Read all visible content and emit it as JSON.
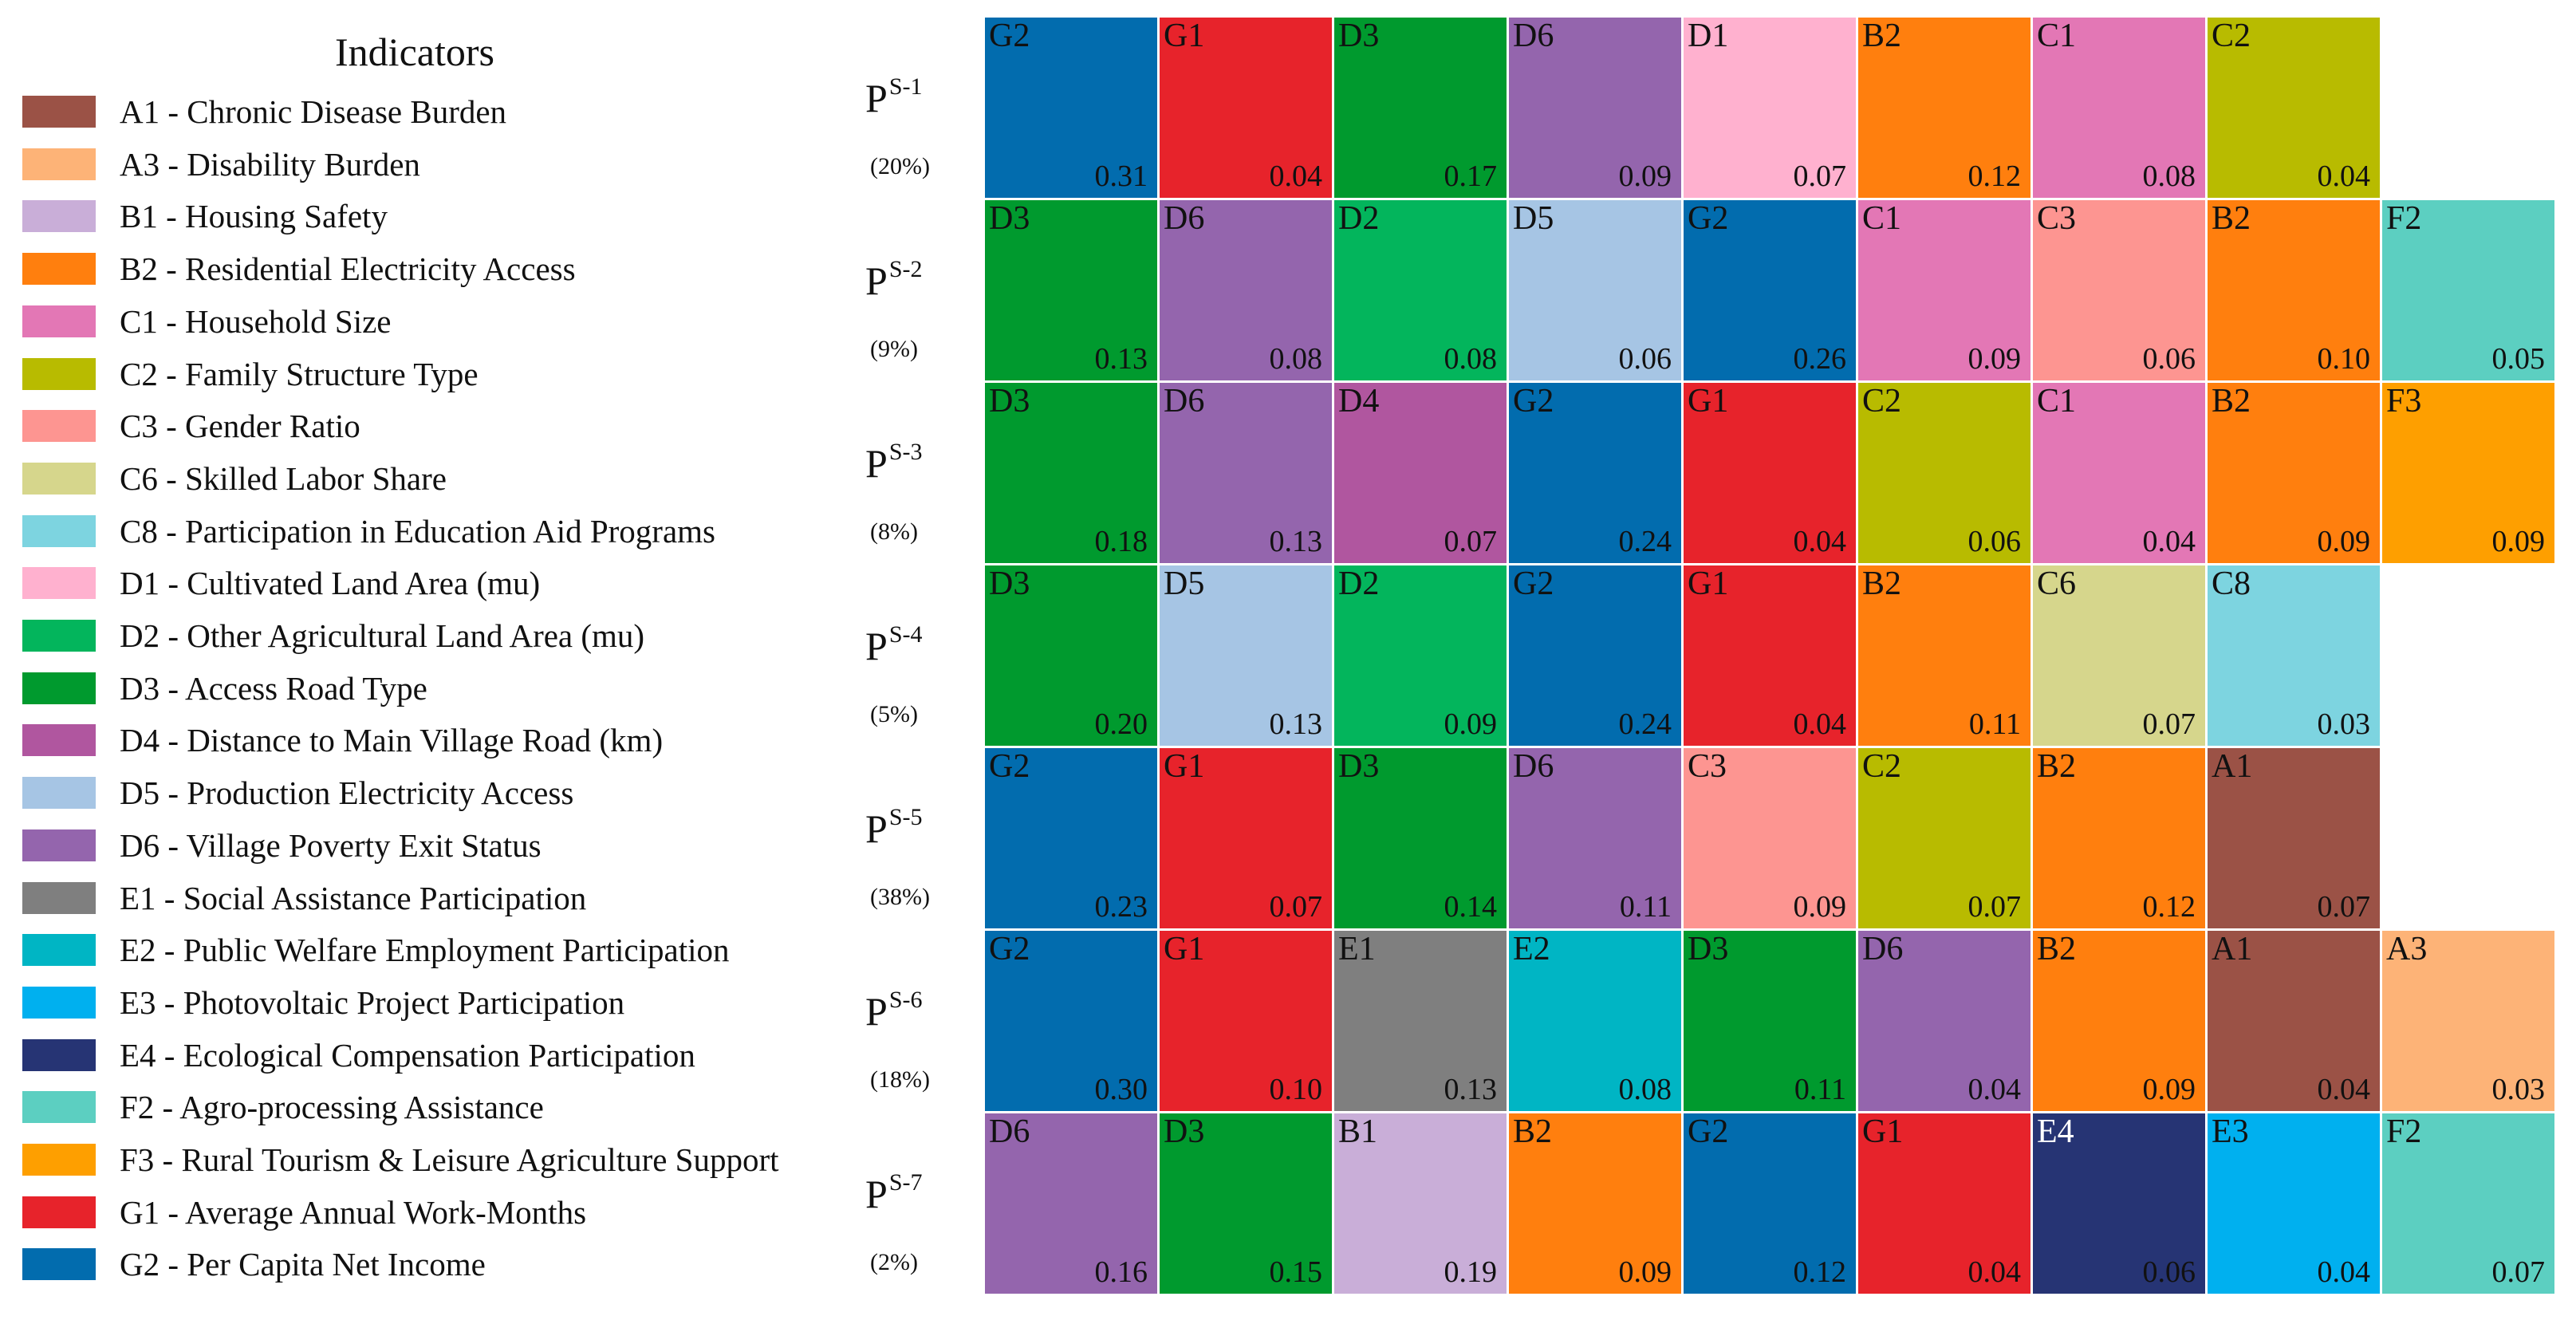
{
  "chart_data": {
    "type": "heatmap",
    "legend_title": "Indicators",
    "indicators": [
      {
        "code": "A1",
        "label": "A1 - Chronic Disease Burden",
        "color": "#9b5246"
      },
      {
        "code": "A3",
        "label": "A3 - Disability Burden",
        "color": "#fdb377"
      },
      {
        "code": "B1",
        "label": "B1 - Housing Safety",
        "color": "#c9aed8"
      },
      {
        "code": "B2",
        "label": "B2 - Residential Electricity Access",
        "color": "#ff7f0e"
      },
      {
        "code": "C1",
        "label": "C1 - Household Size",
        "color": "#e377b5"
      },
      {
        "code": "C2",
        "label": "C2 - Family Structure Type",
        "color": "#b8bb00"
      },
      {
        "code": "C3",
        "label": "C3 - Gender Ratio",
        "color": "#fd9591"
      },
      {
        "code": "C6",
        "label": "C6 - Skilled Labor Share",
        "color": "#d6d68c"
      },
      {
        "code": "C8",
        "label": "C8 - Participation in Education Aid Programs",
        "color": "#7dd4e0"
      },
      {
        "code": "D1",
        "label": "D1 - Cultivated Land Area (mu)",
        "color": "#ffb1cf"
      },
      {
        "code": "D2",
        "label": "D2 - Other Agricultural Land Area (mu)",
        "color": "#03b55c"
      },
      {
        "code": "D3",
        "label": "D3 - Access Road Type",
        "color": "#009a2e"
      },
      {
        "code": "D4",
        "label": "D4 - Distance to Main Village Road (km)",
        "color": "#b0569f"
      },
      {
        "code": "D5",
        "label": "D5 - Production Electricity Access",
        "color": "#a6c5e4"
      },
      {
        "code": "D6",
        "label": "D6 - Village Poverty Exit Status",
        "color": "#9465ad"
      },
      {
        "code": "E1",
        "label": "E1 - Social Assistance Participation",
        "color": "#7f7f7f"
      },
      {
        "code": "E2",
        "label": "E2 - Public Welfare Employment Participation",
        "color": "#00b5c4"
      },
      {
        "code": "E3",
        "label": "E3 - Photovoltaic Project Participation",
        "color": "#00b0ef"
      },
      {
        "code": "E4",
        "label": "E4 - Ecological Compensation Participation",
        "color": "#263474"
      },
      {
        "code": "F2",
        "label": "F2 - Agro-processing Assistance",
        "color": "#5ccfc1"
      },
      {
        "code": "F3",
        "label": "F3 - Rural Tourism & Leisure Agriculture Support",
        "color": "#fe9f00"
      },
      {
        "code": "G1",
        "label": "G1 - Average Annual Work-Months",
        "color": "#e7232b"
      },
      {
        "code": "G2",
        "label": "G2 - Per Capita Net Income",
        "color": "#026cae"
      }
    ],
    "rows": [
      {
        "label": "P",
        "sup": "S-1",
        "share": "(20%)",
        "cells": [
          {
            "code": "G2",
            "value": "0.31"
          },
          {
            "code": "G1",
            "value": "0.04"
          },
          {
            "code": "D3",
            "value": "0.17"
          },
          {
            "code": "D6",
            "value": "0.09"
          },
          {
            "code": "D1",
            "value": "0.07"
          },
          {
            "code": "B2",
            "value": "0.12"
          },
          {
            "code": "C1",
            "value": "0.08"
          },
          {
            "code": "C2",
            "value": "0.04"
          }
        ]
      },
      {
        "label": "P",
        "sup": "S-2",
        "share": "(9%)",
        "cells": [
          {
            "code": "D3",
            "value": "0.13"
          },
          {
            "code": "D6",
            "value": "0.08"
          },
          {
            "code": "D2",
            "value": "0.08"
          },
          {
            "code": "D5",
            "value": "0.06"
          },
          {
            "code": "G2",
            "value": "0.26"
          },
          {
            "code": "C1",
            "value": "0.09"
          },
          {
            "code": "C3",
            "value": "0.06"
          },
          {
            "code": "B2",
            "value": "0.10"
          },
          {
            "code": "F2",
            "value": "0.05"
          }
        ]
      },
      {
        "label": "P",
        "sup": "S-3",
        "share": "(8%)",
        "cells": [
          {
            "code": "D3",
            "value": "0.18"
          },
          {
            "code": "D6",
            "value": "0.13"
          },
          {
            "code": "D4",
            "value": "0.07"
          },
          {
            "code": "G2",
            "value": "0.24"
          },
          {
            "code": "G1",
            "value": "0.04"
          },
          {
            "code": "C2",
            "value": "0.06"
          },
          {
            "code": "C1",
            "value": "0.04"
          },
          {
            "code": "B2",
            "value": "0.09"
          },
          {
            "code": "F3",
            "value": "0.09"
          }
        ]
      },
      {
        "label": "P",
        "sup": "S-4",
        "share": "(5%)",
        "cells": [
          {
            "code": "D3",
            "value": "0.20"
          },
          {
            "code": "D5",
            "value": "0.13"
          },
          {
            "code": "D2",
            "value": "0.09"
          },
          {
            "code": "G2",
            "value": "0.24"
          },
          {
            "code": "G1",
            "value": "0.04"
          },
          {
            "code": "B2",
            "value": "0.11"
          },
          {
            "code": "C6",
            "value": "0.07"
          },
          {
            "code": "C8",
            "value": "0.03"
          }
        ]
      },
      {
        "label": "P",
        "sup": "S-5",
        "share": "(38%)",
        "cells": [
          {
            "code": "G2",
            "value": "0.23"
          },
          {
            "code": "G1",
            "value": "0.07"
          },
          {
            "code": "D3",
            "value": "0.14"
          },
          {
            "code": "D6",
            "value": "0.11"
          },
          {
            "code": "C3",
            "value": "0.09"
          },
          {
            "code": "C2",
            "value": "0.07"
          },
          {
            "code": "B2",
            "value": "0.12"
          },
          {
            "code": "A1",
            "value": "0.07"
          }
        ]
      },
      {
        "label": "P",
        "sup": "S-6",
        "share": "(18%)",
        "cells": [
          {
            "code": "G2",
            "value": "0.30"
          },
          {
            "code": "G1",
            "value": "0.10"
          },
          {
            "code": "E1",
            "value": "0.13"
          },
          {
            "code": "E2",
            "value": "0.08"
          },
          {
            "code": "D3",
            "value": "0.11"
          },
          {
            "code": "D6",
            "value": "0.04"
          },
          {
            "code": "B2",
            "value": "0.09"
          },
          {
            "code": "A1",
            "value": "0.04"
          },
          {
            "code": "A3",
            "value": "0.03"
          }
        ]
      },
      {
        "label": "P",
        "sup": "S-7",
        "share": "(2%)",
        "cells": [
          {
            "code": "D6",
            "value": "0.16"
          },
          {
            "code": "D3",
            "value": "0.15"
          },
          {
            "code": "B1",
            "value": "0.19"
          },
          {
            "code": "B2",
            "value": "0.09"
          },
          {
            "code": "G2",
            "value": "0.12"
          },
          {
            "code": "G1",
            "value": "0.04"
          },
          {
            "code": "E4",
            "value": "0.06"
          },
          {
            "code": "E3",
            "value": "0.04"
          },
          {
            "code": "F2",
            "value": "0.07"
          }
        ]
      }
    ]
  }
}
